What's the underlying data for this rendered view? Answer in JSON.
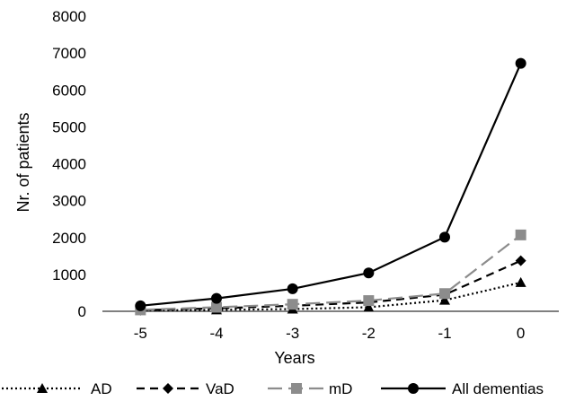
{
  "chart_data": {
    "type": "line",
    "title": "",
    "xlabel": "Years",
    "ylabel": "Nr. of patients",
    "x": [
      -5,
      -4,
      -3,
      -2,
      -1,
      0
    ],
    "x_tick_labels": [
      "-5",
      "-4",
      "-3",
      "-2",
      "-1",
      "0"
    ],
    "ylim": [
      0,
      8000
    ],
    "y_ticks": [
      0,
      1000,
      2000,
      3000,
      4000,
      5000,
      6000,
      7000,
      8000
    ],
    "y_tick_labels": [
      "0",
      "1000",
      "2000",
      "3000",
      "4000",
      "5000",
      "6000",
      "7000",
      "8000"
    ],
    "grid": false,
    "legend_position": "bottom",
    "series": [
      {
        "name": "AD",
        "values": [
          20,
          40,
          60,
          110,
          300,
          780
        ],
        "color": "#000000",
        "line_style": "dotted",
        "marker": "triangle"
      },
      {
        "name": "VaD",
        "values": [
          30,
          80,
          150,
          240,
          450,
          1370
        ],
        "color": "#000000",
        "line_style": "dashed",
        "marker": "diamond"
      },
      {
        "name": "mD",
        "values": [
          40,
          110,
          190,
          290,
          480,
          2070
        ],
        "color": "#8c8c8c",
        "line_style": "long-dash",
        "marker": "square"
      },
      {
        "name": "All dementias",
        "values": [
          150,
          350,
          610,
          1040,
          2010,
          6720
        ],
        "color": "#000000",
        "line_style": "solid",
        "marker": "circle"
      }
    ]
  }
}
